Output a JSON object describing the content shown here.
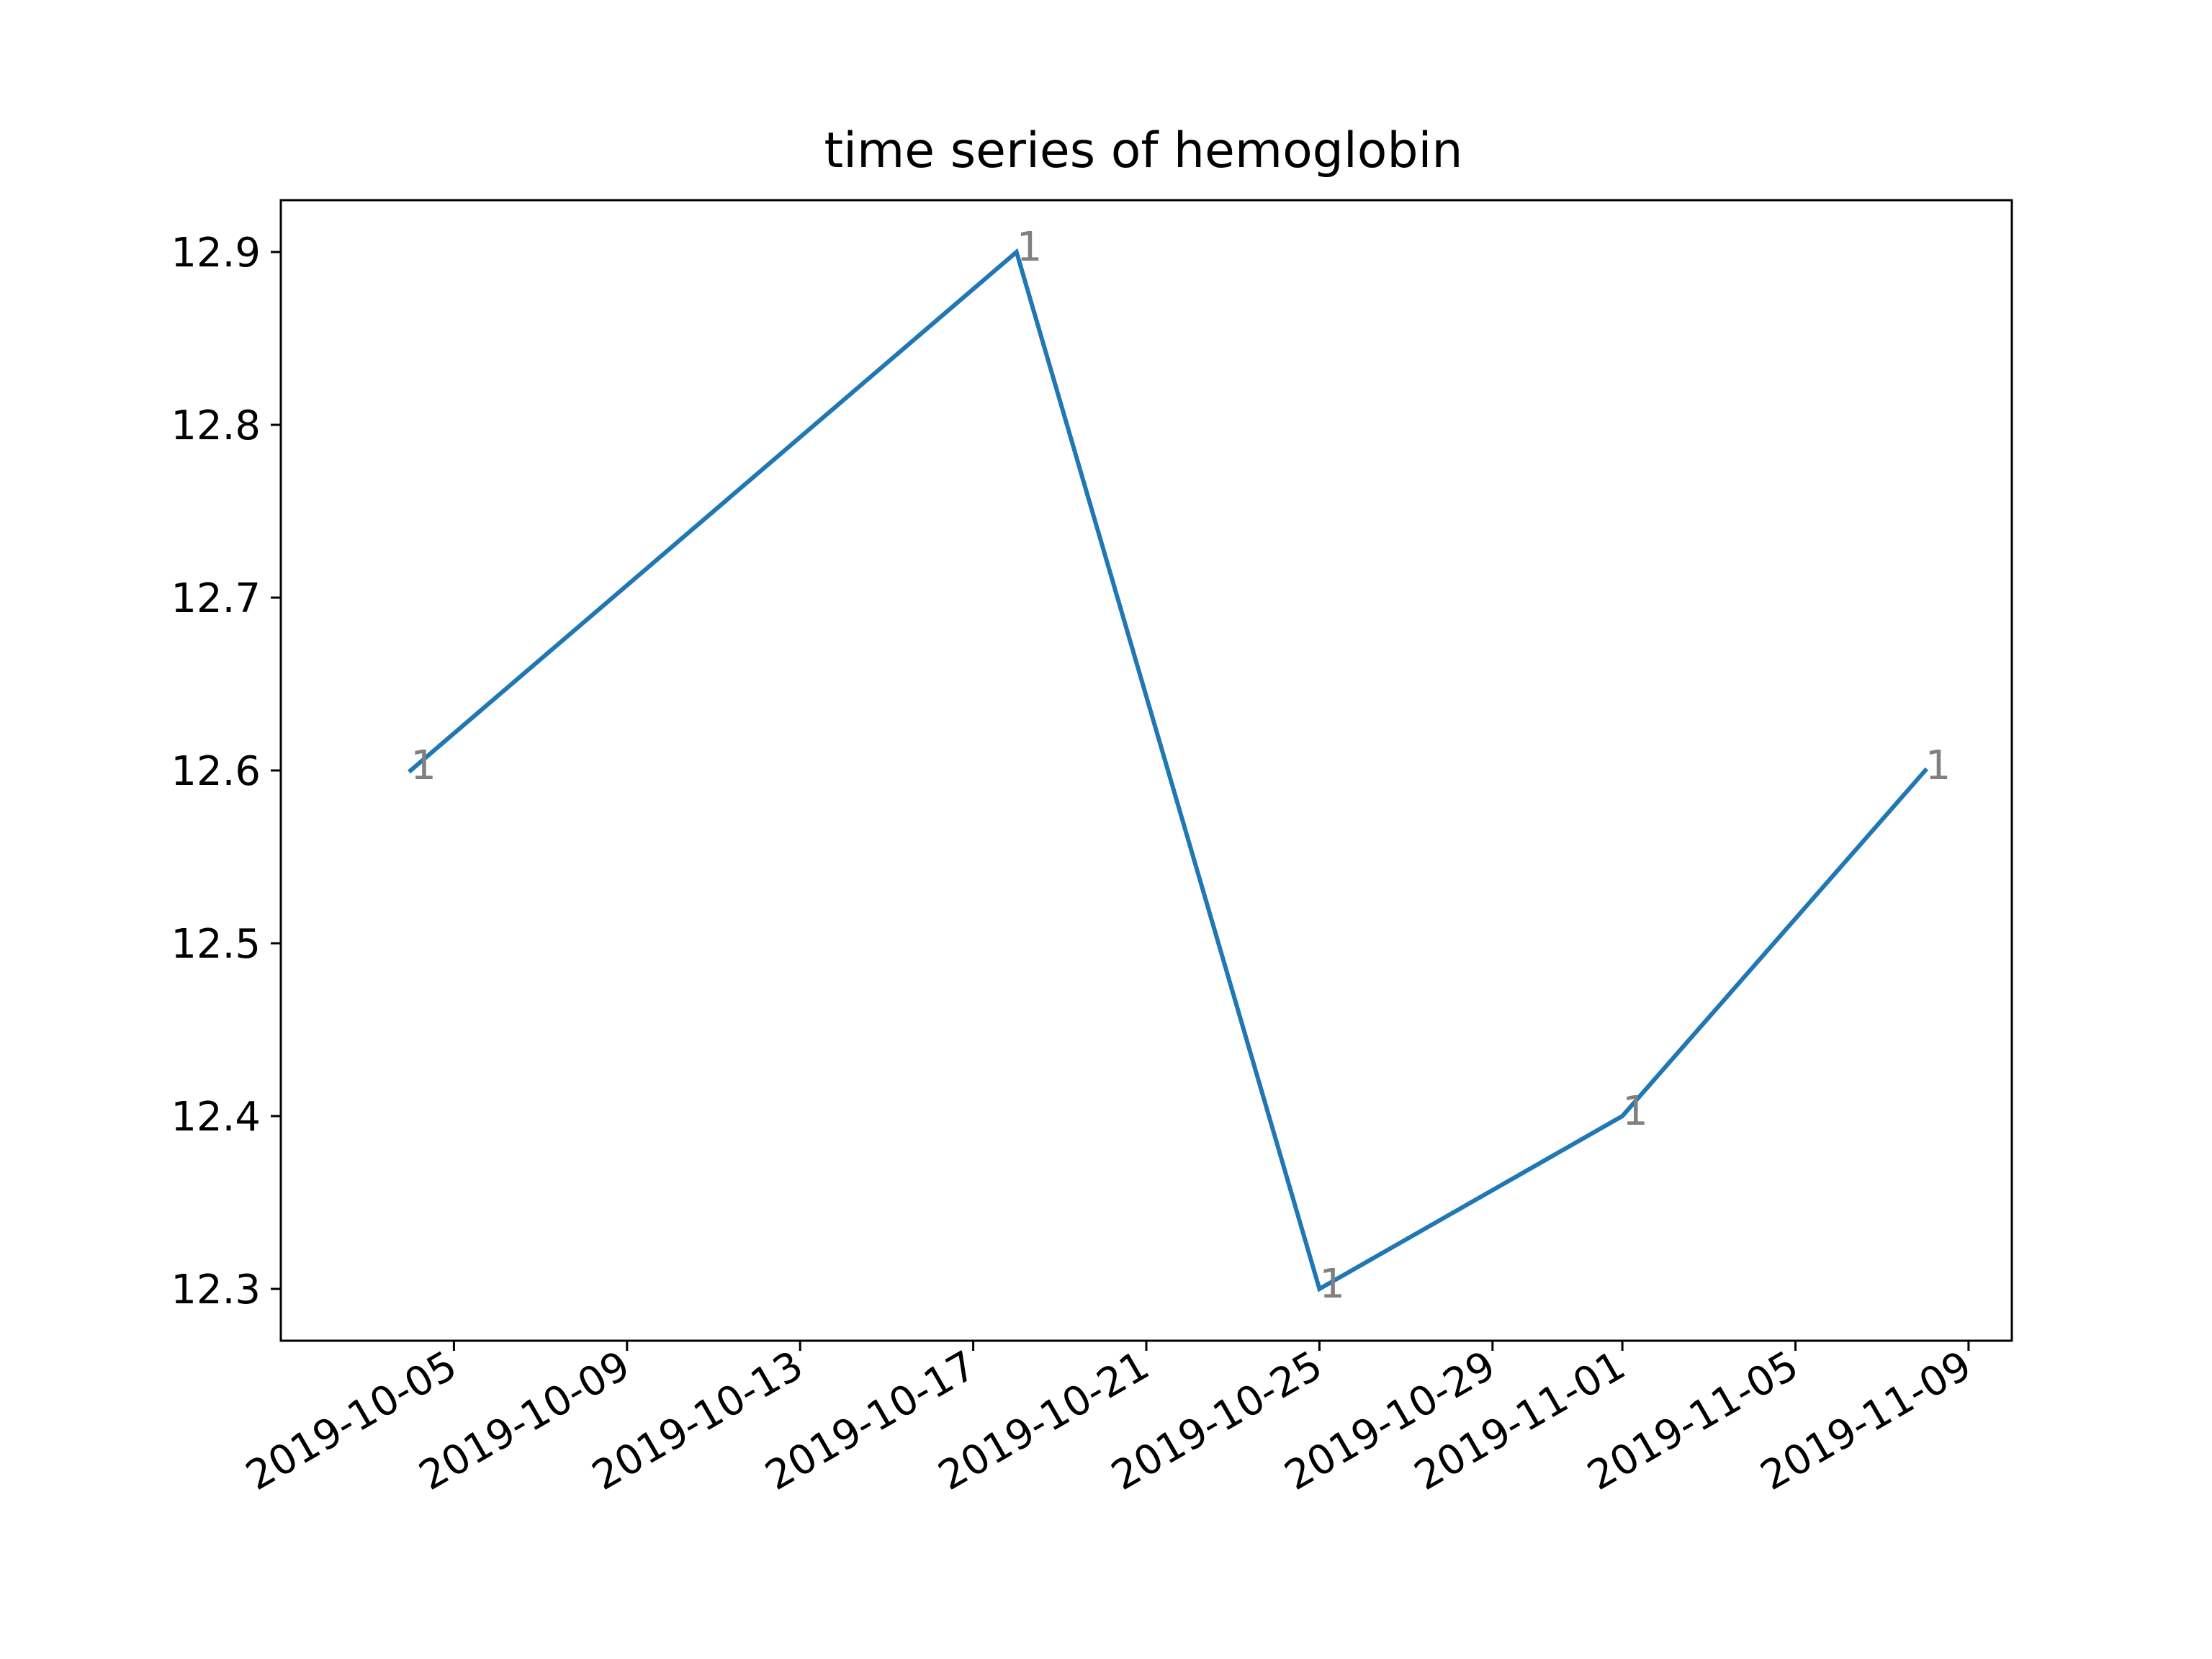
{
  "chart_data": {
    "type": "line",
    "title": "time series of hemoglobin",
    "xlabel": "",
    "ylabel": "",
    "x_type": "date",
    "xlim": [
      "2019-10-01",
      "2019-11-10"
    ],
    "ylim": [
      12.27,
      12.93
    ],
    "x_tick_labels": [
      "2019-10-05",
      "2019-10-09",
      "2019-10-13",
      "2019-10-17",
      "2019-10-21",
      "2019-10-25",
      "2019-10-29",
      "2019-11-01",
      "2019-11-05",
      "2019-11-09"
    ],
    "y_tick_labels": [
      "12.3",
      "12.4",
      "12.5",
      "12.6",
      "12.7",
      "12.8",
      "12.9"
    ],
    "grid": false,
    "legend": "none",
    "series": [
      {
        "color": "#1f77b4",
        "x": [
          "2019-10-04",
          "2019-10-18",
          "2019-10-25",
          "2019-11-01",
          "2019-11-08"
        ],
        "y": [
          12.6,
          12.9,
          12.3,
          12.4,
          12.6
        ],
        "labels": [
          "1",
          "1",
          "1",
          "1",
          "1"
        ]
      }
    ],
    "annotation_color": "#808080"
  }
}
